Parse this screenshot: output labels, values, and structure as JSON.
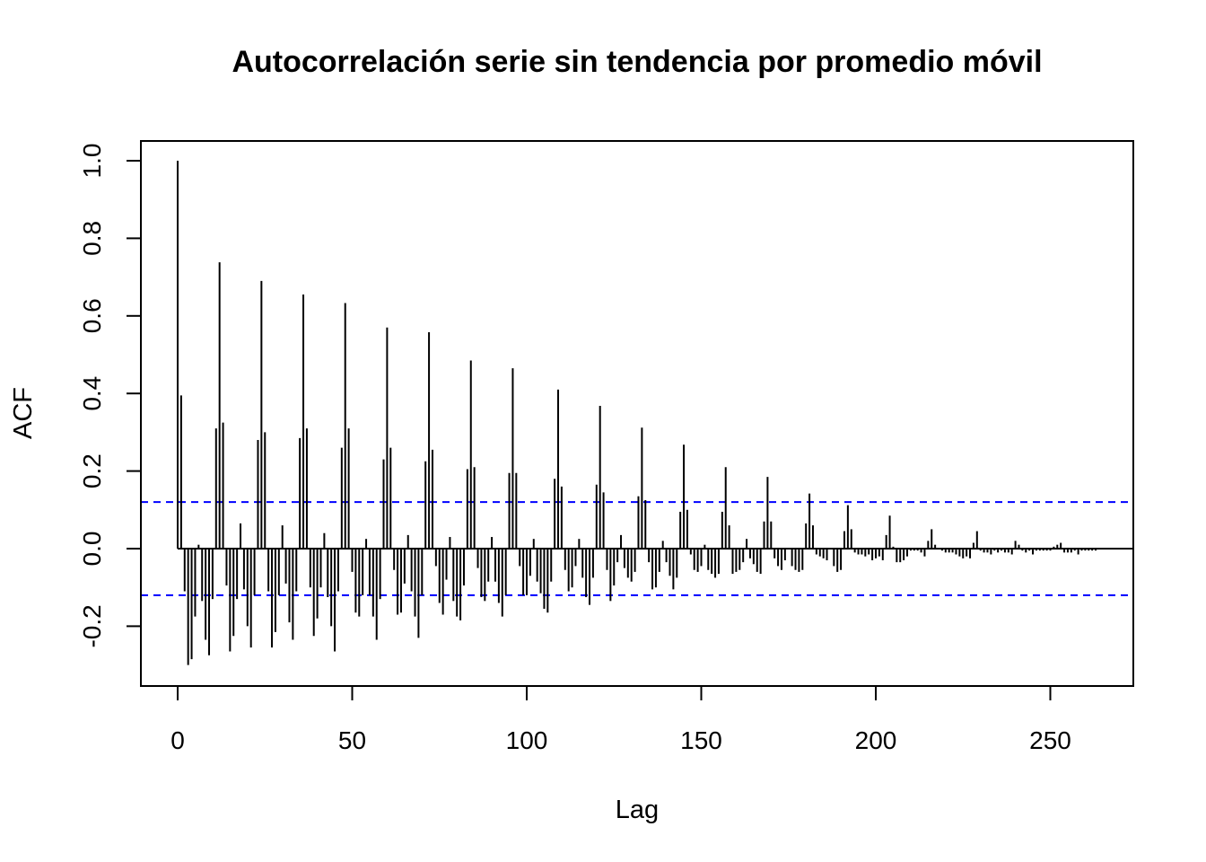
{
  "chart_data": {
    "type": "bar",
    "title": "Autocorrelación serie sin tendencia por promedio móvil",
    "xlabel": "Lag",
    "ylabel": "ACF",
    "xlim": [
      -10,
      274
    ],
    "ylim": [
      -0.35,
      1.05
    ],
    "x_ticks": [
      0,
      50,
      100,
      150,
      200,
      250
    ],
    "y_ticks": [
      -0.2,
      0.0,
      0.2,
      0.4,
      0.6,
      0.8,
      1.0
    ],
    "x_tick_labels": [
      "0",
      "50",
      "100",
      "150",
      "200",
      "250"
    ],
    "y_tick_labels": [
      "-0.2",
      "0.0",
      "0.2",
      "0.4",
      "0.6",
      "0.8",
      "1.0"
    ],
    "confidence_bounds": [
      0.12,
      -0.12
    ],
    "confidence_color": "#0000ff",
    "bar_color": "#000000",
    "grid": false,
    "lags": [
      0,
      1,
      2,
      3,
      4,
      5,
      6,
      7,
      8,
      9,
      10,
      11,
      12,
      13,
      14,
      15,
      16,
      17,
      18,
      19,
      20,
      21,
      22,
      23,
      24,
      25,
      26,
      27,
      28,
      29,
      30,
      31,
      32,
      33,
      34,
      35,
      36,
      37,
      38,
      39,
      40,
      41,
      42,
      43,
      44,
      45,
      46,
      47,
      48,
      49,
      50,
      51,
      52,
      53,
      54,
      55,
      56,
      57,
      58,
      59,
      60,
      61,
      62,
      63,
      64,
      65,
      66,
      67,
      68,
      69,
      70,
      71,
      72,
      73,
      74,
      75,
      76,
      77,
      78,
      79,
      80,
      81,
      82,
      83,
      84,
      85,
      86,
      87,
      88,
      89,
      90,
      91,
      92,
      93,
      94,
      95,
      96,
      97,
      98,
      99,
      100,
      101,
      102,
      103,
      104,
      105,
      106,
      107,
      108,
      109,
      110,
      111,
      112,
      113,
      114,
      115,
      116,
      117,
      118,
      119,
      120,
      121,
      122,
      123,
      124,
      125,
      126,
      127,
      128,
      129,
      130,
      131,
      132,
      133,
      134,
      135,
      136,
      137,
      138,
      139,
      140,
      141,
      142,
      143,
      144,
      145,
      146,
      147,
      148,
      149,
      150,
      151,
      152,
      153,
      154,
      155,
      156,
      157,
      158,
      159,
      160,
      161,
      162,
      163,
      164,
      165,
      166,
      167,
      168,
      169,
      170,
      171,
      172,
      173,
      174,
      175,
      176,
      177,
      178,
      179,
      180,
      181,
      182,
      183,
      184,
      185,
      186,
      187,
      188,
      189,
      190,
      191,
      192,
      193,
      194,
      195,
      196,
      197,
      198,
      199,
      200,
      201,
      202,
      203,
      204,
      205,
      206,
      207,
      208,
      209,
      210,
      211,
      212,
      213,
      214,
      215,
      216,
      217,
      218,
      219,
      220,
      221,
      222,
      223,
      224,
      225,
      226,
      227,
      228,
      229,
      230,
      231,
      232,
      233,
      234,
      235,
      236,
      237,
      238,
      239,
      240,
      241,
      242,
      243,
      244,
      245,
      246,
      247,
      248,
      249,
      250,
      251,
      252,
      253,
      254,
      255,
      256,
      257,
      258,
      259,
      260,
      261,
      262,
      263
    ],
    "acf": [
      1.0,
      0.395,
      -0.11,
      -0.3,
      -0.285,
      -0.175,
      0.01,
      -0.135,
      -0.235,
      -0.275,
      -0.13,
      0.31,
      0.738,
      0.325,
      -0.095,
      -0.265,
      -0.225,
      -0.13,
      0.065,
      -0.105,
      -0.2,
      -0.255,
      -0.12,
      0.28,
      0.69,
      0.3,
      -0.11,
      -0.255,
      -0.215,
      -0.12,
      0.06,
      -0.09,
      -0.19,
      -0.235,
      -0.11,
      0.285,
      0.655,
      0.31,
      -0.1,
      -0.225,
      -0.18,
      -0.1,
      0.04,
      -0.125,
      -0.2,
      -0.265,
      -0.11,
      0.26,
      0.633,
      0.31,
      -0.06,
      -0.165,
      -0.175,
      -0.12,
      0.025,
      -0.12,
      -0.175,
      -0.235,
      -0.13,
      0.23,
      0.57,
      0.26,
      -0.055,
      -0.17,
      -0.165,
      -0.09,
      0.035,
      -0.11,
      -0.175,
      -0.23,
      -0.12,
      0.225,
      0.558,
      0.255,
      -0.045,
      -0.14,
      -0.17,
      -0.08,
      0.03,
      -0.135,
      -0.175,
      -0.185,
      -0.095,
      0.205,
      0.485,
      0.21,
      -0.05,
      -0.125,
      -0.135,
      -0.085,
      0.03,
      -0.085,
      -0.14,
      -0.175,
      -0.12,
      0.195,
      0.465,
      0.195,
      -0.045,
      -0.12,
      -0.12,
      -0.07,
      0.025,
      -0.085,
      -0.115,
      -0.155,
      -0.165,
      -0.085,
      0.18,
      0.41,
      0.16,
      -0.055,
      -0.11,
      -0.1,
      -0.045,
      0.025,
      -0.075,
      -0.125,
      -0.145,
      -0.075,
      0.165,
      0.368,
      0.145,
      -0.055,
      -0.135,
      -0.095,
      -0.035,
      0.035,
      -0.05,
      -0.075,
      -0.085,
      -0.06,
      0.135,
      0.312,
      0.125,
      -0.035,
      -0.105,
      -0.1,
      -0.06,
      0.02,
      -0.035,
      -0.07,
      -0.105,
      -0.075,
      0.095,
      0.268,
      0.1,
      -0.015,
      -0.055,
      -0.06,
      -0.045,
      0.01,
      -0.055,
      -0.065,
      -0.075,
      -0.065,
      0.095,
      0.21,
      0.06,
      -0.065,
      -0.06,
      -0.055,
      -0.035,
      0.025,
      -0.025,
      -0.04,
      -0.06,
      -0.065,
      0.07,
      0.185,
      0.07,
      -0.025,
      -0.045,
      -0.055,
      -0.03,
      0.0,
      -0.045,
      -0.055,
      -0.06,
      -0.055,
      0.065,
      0.142,
      0.06,
      -0.015,
      -0.02,
      -0.025,
      -0.03,
      0.0,
      -0.045,
      -0.06,
      -0.055,
      0.045,
      0.112,
      0.05,
      -0.01,
      -0.015,
      -0.015,
      -0.02,
      -0.015,
      -0.03,
      -0.025,
      -0.02,
      -0.03,
      0.035,
      0.085,
      0.005,
      -0.035,
      -0.035,
      -0.03,
      -0.02,
      -0.005,
      -0.005,
      -0.005,
      -0.01,
      -0.02,
      0.02,
      0.05,
      0.01,
      0.0,
      -0.005,
      -0.01,
      -0.01,
      -0.01,
      -0.015,
      -0.02,
      -0.025,
      -0.02,
      -0.025,
      0.015,
      0.045,
      -0.005,
      -0.01,
      -0.01,
      -0.015,
      -0.005,
      -0.01,
      -0.005,
      -0.01,
      -0.01,
      -0.015,
      0.02,
      0.01,
      -0.005,
      -0.01,
      -0.005,
      -0.015,
      -0.005,
      -0.005,
      -0.005,
      -0.005,
      -0.005,
      0.005,
      0.01,
      0.015,
      -0.01,
      -0.01,
      -0.01,
      -0.005,
      -0.015,
      -0.005,
      -0.005,
      -0.005,
      -0.005,
      -0.005,
      -0.005
    ]
  }
}
